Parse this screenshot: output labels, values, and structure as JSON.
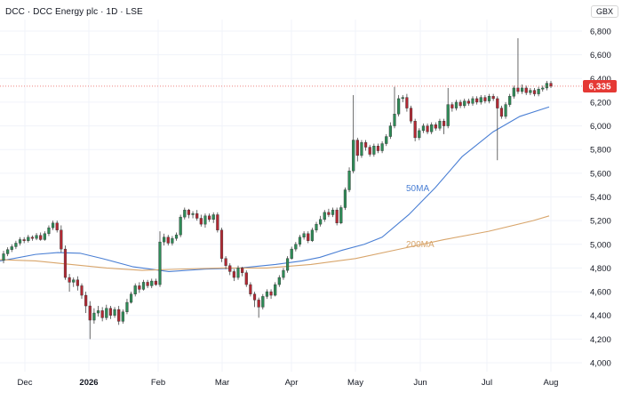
{
  "header": {
    "title": "DCC · DCC Energy plc · 1D · LSE",
    "currency": "GBX"
  },
  "chart_data": {
    "type": "candlestick",
    "symbol": "DCC",
    "ylim": [
      4000,
      6900
    ],
    "y_ticks": [
      "4,000",
      "4,200",
      "4,400",
      "4,600",
      "4,800",
      "5,000",
      "5,200",
      "5,400",
      "5,600",
      "5,800",
      "6,000",
      "6,200",
      "6,400",
      "6,600",
      "6,800"
    ],
    "x_ticks": [
      "Dec",
      "2026",
      "Feb",
      "Mar",
      "Apr",
      "May",
      "Jun",
      "Jul",
      "Aug"
    ],
    "last_price": "6,335",
    "colors": {
      "up": "#2e8b57",
      "down": "#b22833",
      "ma50": "#4a7fd4",
      "ma200": "#d8a56b",
      "price_tag": "#e53935"
    },
    "series": [
      {
        "name": "50MA",
        "points": [
          [
            0,
            4860
          ],
          [
            15,
            4880
          ],
          [
            40,
            4915
          ],
          [
            65,
            4930
          ],
          [
            90,
            4925
          ],
          [
            115,
            4880
          ],
          [
            150,
            4810
          ],
          [
            190,
            4770
          ],
          [
            230,
            4790
          ],
          [
            270,
            4800
          ],
          [
            310,
            4830
          ],
          [
            340,
            4860
          ],
          [
            360,
            4890
          ],
          [
            385,
            4950
          ],
          [
            410,
            5000
          ],
          [
            430,
            5060
          ],
          [
            460,
            5250
          ],
          [
            490,
            5480
          ],
          [
            520,
            5740
          ],
          [
            555,
            5950
          ],
          [
            585,
            6080
          ],
          [
            618,
            6160
          ]
        ]
      },
      {
        "name": "200MA",
        "points": [
          [
            0,
            4870
          ],
          [
            40,
            4860
          ],
          [
            80,
            4830
          ],
          [
            120,
            4800
          ],
          [
            160,
            4780
          ],
          [
            200,
            4790
          ],
          [
            250,
            4800
          ],
          [
            300,
            4800
          ],
          [
            350,
            4830
          ],
          [
            400,
            4880
          ],
          [
            450,
            4960
          ],
          [
            500,
            5040
          ],
          [
            550,
            5110
          ],
          [
            600,
            5200
          ],
          [
            618,
            5240
          ]
        ]
      }
    ],
    "candles": [
      [
        4865,
        4920,
        4840,
        4945
      ],
      [
        4920,
        4955,
        4900,
        4975
      ],
      [
        4955,
        4980,
        4935,
        5000
      ],
      [
        4980,
        5010,
        4960,
        5030
      ],
      [
        5010,
        5040,
        4990,
        5060
      ],
      [
        5040,
        5030,
        5010,
        5060
      ],
      [
        5030,
        5060,
        5015,
        5080
      ],
      [
        5060,
        5050,
        5030,
        5075
      ],
      [
        5050,
        5075,
        5035,
        5095
      ],
      [
        5075,
        5040,
        5030,
        5100
      ],
      [
        5040,
        5090,
        5030,
        5110
      ],
      [
        5090,
        5140,
        5070,
        5160
      ],
      [
        5140,
        5180,
        5120,
        5200
      ],
      [
        5180,
        5120,
        5100,
        5200
      ],
      [
        5120,
        4960,
        4930,
        5160
      ],
      [
        4960,
        4720,
        4700,
        4990
      ],
      [
        4720,
        4680,
        4600,
        4750
      ],
      [
        4680,
        4700,
        4640,
        4720
      ],
      [
        4700,
        4650,
        4610,
        4730
      ],
      [
        4650,
        4570,
        4540,
        4670
      ],
      [
        4570,
        4480,
        4420,
        4600
      ],
      [
        4480,
        4360,
        4200,
        4520
      ],
      [
        4360,
        4420,
        4330,
        4460
      ],
      [
        4420,
        4440,
        4390,
        4480
      ],
      [
        4440,
        4380,
        4350,
        4470
      ],
      [
        4380,
        4460,
        4360,
        4490
      ],
      [
        4460,
        4400,
        4370,
        4480
      ],
      [
        4400,
        4450,
        4380,
        4470
      ],
      [
        4450,
        4350,
        4320,
        4480
      ],
      [
        4350,
        4430,
        4330,
        4450
      ],
      [
        4430,
        4510,
        4410,
        4540
      ],
      [
        4510,
        4580,
        4500,
        4600
      ],
      [
        4580,
        4650,
        4560,
        4670
      ],
      [
        4650,
        4620,
        4590,
        4680
      ],
      [
        4620,
        4680,
        4610,
        4700
      ],
      [
        4680,
        4650,
        4630,
        4700
      ],
      [
        4650,
        4690,
        4630,
        4710
      ],
      [
        4690,
        4660,
        4650,
        4710
      ],
      [
        4660,
        5020,
        4640,
        5110
      ],
      [
        5020,
        5060,
        4990,
        5090
      ],
      [
        5060,
        5010,
        4990,
        5080
      ],
      [
        5010,
        5050,
        4990,
        5070
      ],
      [
        5050,
        5080,
        5030,
        5100
      ],
      [
        5080,
        5230,
        5060,
        5250
      ],
      [
        5230,
        5290,
        5210,
        5310
      ],
      [
        5290,
        5250,
        5220,
        5300
      ],
      [
        5250,
        5260,
        5220,
        5280
      ],
      [
        5260,
        5220,
        5200,
        5290
      ],
      [
        5220,
        5170,
        5150,
        5250
      ],
      [
        5170,
        5240,
        5140,
        5260
      ],
      [
        5240,
        5210,
        5190,
        5260
      ],
      [
        5210,
        5250,
        5180,
        5270
      ],
      [
        5250,
        5120,
        5100,
        5270
      ],
      [
        5120,
        4880,
        4850,
        5140
      ],
      [
        4880,
        4820,
        4790,
        4900
      ],
      [
        4820,
        4770,
        4740,
        4840
      ],
      [
        4770,
        4720,
        4690,
        4790
      ],
      [
        4720,
        4800,
        4700,
        4820
      ],
      [
        4800,
        4760,
        4730,
        4810
      ],
      [
        4760,
        4660,
        4640,
        4780
      ],
      [
        4660,
        4580,
        4560,
        4680
      ],
      [
        4580,
        4530,
        4470,
        4600
      ],
      [
        4530,
        4470,
        4380,
        4550
      ],
      [
        4470,
        4560,
        4450,
        4580
      ],
      [
        4560,
        4600,
        4540,
        4620
      ],
      [
        4600,
        4570,
        4540,
        4620
      ],
      [
        4570,
        4660,
        4560,
        4680
      ],
      [
        4660,
        4720,
        4640,
        4740
      ],
      [
        4720,
        4780,
        4700,
        4800
      ],
      [
        4780,
        4880,
        4760,
        4900
      ],
      [
        4880,
        4960,
        4870,
        4980
      ],
      [
        4960,
        5000,
        4940,
        5020
      ],
      [
        5000,
        5060,
        4980,
        5080
      ],
      [
        5060,
        5090,
        5040,
        5110
      ],
      [
        5090,
        5030,
        5010,
        5110
      ],
      [
        5030,
        5120,
        5020,
        5140
      ],
      [
        5120,
        5170,
        5100,
        5190
      ],
      [
        5170,
        5210,
        5150,
        5240
      ],
      [
        5210,
        5270,
        5190,
        5290
      ],
      [
        5270,
        5250,
        5230,
        5300
      ],
      [
        5250,
        5290,
        5230,
        5310
      ],
      [
        5290,
        5180,
        5160,
        5310
      ],
      [
        5180,
        5310,
        5170,
        5330
      ],
      [
        5310,
        5460,
        5290,
        5480
      ],
      [
        5460,
        5620,
        5440,
        5650
      ],
      [
        5620,
        5880,
        5600,
        6260
      ],
      [
        5880,
        5750,
        5700,
        5900
      ],
      [
        5750,
        5860,
        5730,
        5880
      ],
      [
        5860,
        5820,
        5790,
        5880
      ],
      [
        5820,
        5760,
        5740,
        5840
      ],
      [
        5760,
        5830,
        5740,
        5850
      ],
      [
        5830,
        5790,
        5770,
        5850
      ],
      [
        5790,
        5850,
        5770,
        5870
      ],
      [
        5850,
        5910,
        5830,
        5930
      ],
      [
        5910,
        6000,
        5890,
        6030
      ],
      [
        6000,
        6100,
        5980,
        6330
      ],
      [
        6100,
        6230,
        6080,
        6260
      ],
      [
        6230,
        6240,
        6200,
        6260
      ],
      [
        6240,
        6150,
        6120,
        6270
      ],
      [
        6150,
        6040,
        6020,
        6170
      ],
      [
        6040,
        5900,
        5870,
        6060
      ],
      [
        5900,
        5960,
        5880,
        5980
      ],
      [
        5960,
        6000,
        5940,
        6020
      ],
      [
        6000,
        5950,
        5930,
        6020
      ],
      [
        5950,
        6010,
        5930,
        6030
      ],
      [
        6010,
        5980,
        5960,
        6030
      ],
      [
        5980,
        6040,
        5960,
        6060
      ],
      [
        6040,
        6000,
        5930,
        6060
      ],
      [
        6000,
        6180,
        5980,
        6320
      ],
      [
        6180,
        6150,
        6120,
        6200
      ],
      [
        6150,
        6200,
        6130,
        6220
      ],
      [
        6200,
        6170,
        6150,
        6220
      ],
      [
        6170,
        6210,
        6150,
        6230
      ],
      [
        6210,
        6190,
        6170,
        6230
      ],
      [
        6190,
        6230,
        6170,
        6250
      ],
      [
        6230,
        6200,
        6180,
        6250
      ],
      [
        6200,
        6240,
        6180,
        6260
      ],
      [
        6240,
        6210,
        6190,
        6260
      ],
      [
        6210,
        6250,
        6190,
        6270
      ],
      [
        6250,
        6230,
        6210,
        6270
      ],
      [
        6230,
        6150,
        5710,
        6250
      ],
      [
        6150,
        6080,
        6060,
        6170
      ],
      [
        6080,
        6180,
        6060,
        6200
      ],
      [
        6180,
        6250,
        6160,
        6270
      ],
      [
        6250,
        6320,
        6230,
        6340
      ],
      [
        6320,
        6290,
        6270,
        6740
      ],
      [
        6290,
        6320,
        6270,
        6350
      ],
      [
        6320,
        6280,
        6260,
        6340
      ],
      [
        6280,
        6300,
        6260,
        6320
      ],
      [
        6300,
        6270,
        6250,
        6320
      ],
      [
        6270,
        6310,
        6250,
        6330
      ],
      [
        6310,
        6320,
        6290,
        6340
      ],
      [
        6320,
        6360,
        6300,
        6380
      ],
      [
        6360,
        6335,
        6320,
        6380
      ]
    ]
  }
}
